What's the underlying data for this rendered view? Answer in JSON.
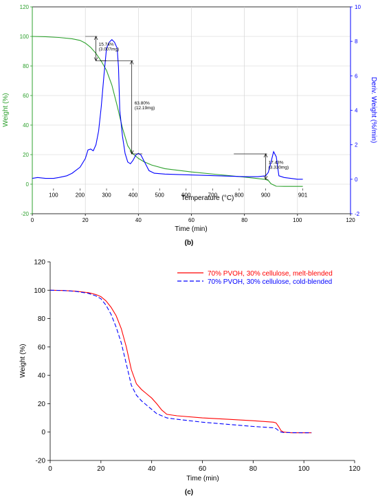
{
  "chart_data": [
    {
      "panel_label": "(b)",
      "type": "line",
      "xlabel": "Time (min)",
      "ylabel": "Weight (%)",
      "y2label": "Deriv. Weight (%/min)",
      "top_axis_label": "Temperature (°C)",
      "xlim": [
        0,
        120
      ],
      "ylim": [
        -20,
        120
      ],
      "y2lim": [
        -2,
        10
      ],
      "x_ticks": [
        "0",
        "20",
        "40",
        "60",
        "80",
        "100",
        "120"
      ],
      "y_ticks": [
        "-20",
        "0",
        "20",
        "40",
        "60",
        "80",
        "100",
        "120"
      ],
      "y2_ticks": [
        "-2",
        "0",
        "2",
        "4",
        "6",
        "8",
        "10"
      ],
      "temperature_ticks": [
        {
          "label": "100",
          "time": 8
        },
        {
          "label": "200",
          "time": 18
        },
        {
          "label": "300",
          "time": 28
        },
        {
          "label": "400",
          "time": 38
        },
        {
          "label": "500",
          "time": 48
        },
        {
          "label": "600",
          "time": 58
        },
        {
          "label": "700",
          "time": 68
        },
        {
          "label": "800",
          "time": 78
        },
        {
          "label": "900",
          "time": 88
        },
        {
          "label": "901",
          "time": 102
        }
      ],
      "grid": true,
      "colors": {
        "weight": "#2ca02c",
        "derivative": "#0000ff",
        "annotation": "#000000"
      },
      "series": [
        {
          "axis": "left",
          "x": [
            0,
            5,
            10,
            15,
            18,
            20,
            22,
            24,
            26,
            28,
            30,
            32,
            34,
            36,
            38,
            40,
            42,
            45,
            50,
            60,
            70,
            80,
            85,
            88,
            89,
            90,
            92,
            95,
            100,
            102
          ],
          "y": [
            100,
            99.8,
            99.3,
            98.4,
            97.3,
            95.5,
            92.6,
            88.5,
            83.3,
            77,
            67,
            53,
            38,
            26,
            20.5,
            17.5,
            15.3,
            13,
            10.5,
            8.3,
            6.5,
            4.8,
            3.8,
            3.2,
            2.5,
            0.3,
            -1.4,
            -1.5,
            -1.5,
            -1.5
          ]
        },
        {
          "axis": "right",
          "x": [
            0,
            2,
            5,
            8,
            10,
            13,
            15,
            18,
            20,
            21,
            22,
            23,
            24,
            25,
            26,
            27,
            28,
            29,
            30,
            31,
            32,
            32.5,
            33,
            34,
            35,
            36,
            37,
            38,
            39,
            40,
            41,
            42,
            43,
            44,
            46,
            50,
            60,
            70,
            80,
            85,
            88,
            89,
            90,
            91,
            92,
            93,
            95,
            100,
            102
          ],
          "y": [
            0.05,
            0.1,
            0.05,
            0.05,
            0.1,
            0.2,
            0.35,
            0.7,
            1.2,
            1.7,
            1.75,
            1.65,
            2.0,
            2.8,
            4.2,
            6.0,
            7.6,
            7.95,
            8.1,
            7.95,
            7.6,
            6.5,
            4.0,
            2.5,
            1.5,
            1.0,
            0.9,
            1.1,
            1.4,
            1.5,
            1.4,
            1.1,
            0.8,
            0.5,
            0.35,
            0.3,
            0.25,
            0.2,
            0.15,
            0.15,
            0.2,
            0.4,
            1.0,
            1.6,
            1.3,
            0.2,
            0.1,
            0.0,
            0.0
          ]
        }
      ],
      "annotations": [
        {
          "text": "15.74%",
          "subtext": "(3.007mg)",
          "x": 24,
          "y_top": 100,
          "y_bottom": 83.5
        },
        {
          "text": "63.80%",
          "subtext": "(12.19mg)",
          "x": 37.5,
          "y_top": 83.5,
          "y_bottom": 20.5
        },
        {
          "text": "17.43%",
          "subtext": "(3.330mg)",
          "x": 88,
          "y_top": 20.5,
          "y_bottom": 3.2
        }
      ]
    },
    {
      "panel_label": "(c)",
      "type": "line",
      "xlabel": "Time (min)",
      "ylabel": "Weight (%)",
      "xlim": [
        0,
        120
      ],
      "ylim": [
        -20,
        120
      ],
      "x_ticks": [
        "0",
        "20",
        "40",
        "60",
        "80",
        "100",
        "120"
      ],
      "y_ticks": [
        "-20",
        "0",
        "20",
        "40",
        "60",
        "80",
        "100",
        "120"
      ],
      "grid": false,
      "legend_position": "top-right",
      "series": [
        {
          "name": "70% PVOH, 30% cellulose, melt-blended",
          "color": "#ff0000",
          "dash": "solid",
          "x": [
            0,
            5,
            10,
            15,
            18,
            20,
            22,
            24,
            26,
            28,
            30,
            32,
            34,
            36,
            38,
            40,
            42,
            44,
            46,
            50,
            60,
            70,
            80,
            88,
            89,
            90,
            91,
            92,
            95,
            100,
            103
          ],
          "y": [
            100,
            99.8,
            99.3,
            98.3,
            97,
            95.5,
            92.5,
            88,
            82,
            73,
            60,
            44,
            34,
            30,
            27,
            24,
            20,
            15.5,
            12.5,
            11.5,
            10,
            9,
            8,
            7,
            6.5,
            4,
            1,
            0,
            -0.5,
            -0.5,
            -0.5
          ]
        },
        {
          "name": "70% PVOH, 30% cellulose, cold-blended",
          "color": "#0000ff",
          "dash": "dashed",
          "x": [
            0,
            5,
            10,
            15,
            18,
            20,
            22,
            24,
            26,
            28,
            30,
            32,
            34,
            36,
            38,
            40,
            42,
            44,
            46,
            50,
            60,
            70,
            80,
            88,
            89,
            90,
            91,
            92,
            95,
            100,
            103
          ],
          "y": [
            100,
            99.8,
            99.2,
            97.8,
            96,
            94,
            89.5,
            83,
            74,
            63,
            48,
            33,
            26,
            22,
            19,
            16,
            13,
            11.5,
            10,
            9,
            7,
            5.5,
            4,
            3,
            2.5,
            1,
            0,
            -0.3,
            -0.4,
            -0.5,
            -0.5
          ]
        }
      ]
    }
  ]
}
